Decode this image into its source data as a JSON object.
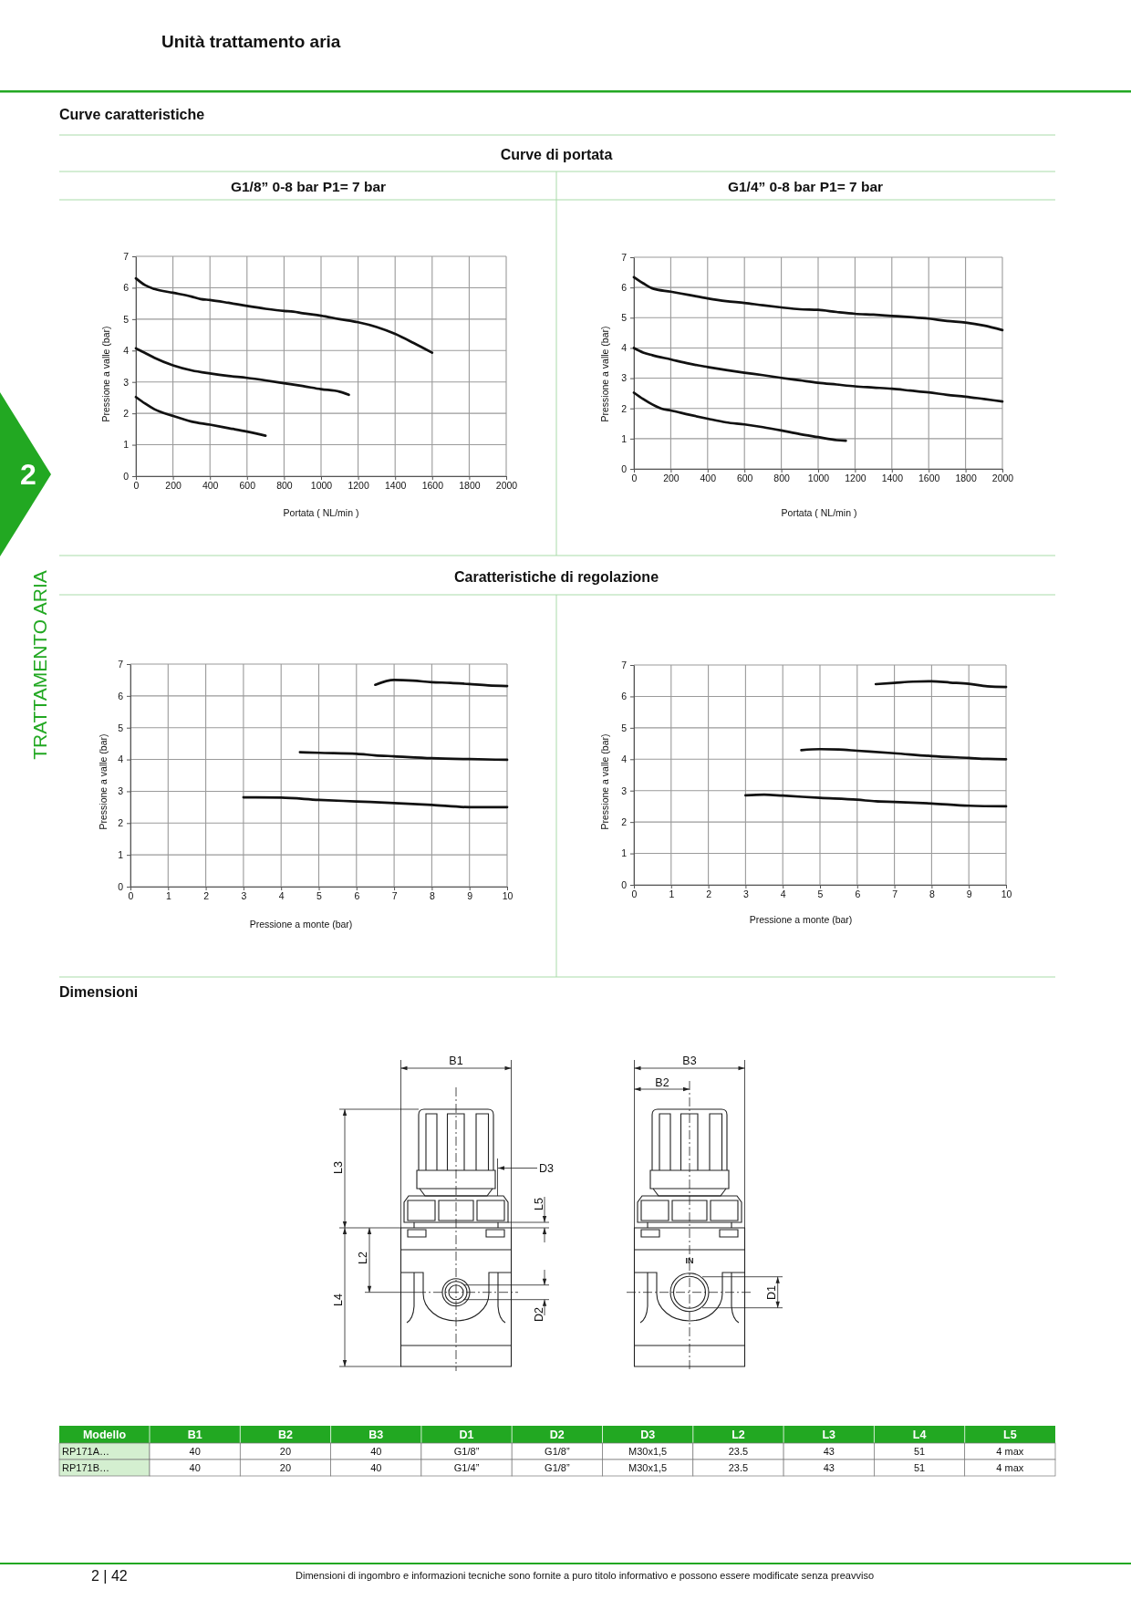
{
  "chart_data": [
    {
      "type": "line",
      "title": "G1/8” 0-8 bar P1= 7 bar",
      "xlabel": "Portata ( NL/min )",
      "ylabel": "Pressione a valle (bar)",
      "xlim": [
        0,
        2000
      ],
      "xticks": [
        0,
        200,
        400,
        600,
        800,
        1000,
        1200,
        1400,
        1600,
        1800,
        2000
      ],
      "ylim": [
        0,
        7
      ],
      "yticks": [
        0,
        1,
        2,
        3,
        4,
        5,
        6,
        7
      ],
      "grid": true,
      "series": [
        {
          "color": "#111111",
          "x": [
            0,
            50,
            100,
            200,
            300,
            350,
            400,
            500,
            600,
            700,
            800,
            850,
            900,
            1000,
            1100,
            1200,
            1300,
            1400,
            1500,
            1600
          ],
          "values": [
            6.3,
            6.08,
            5.96,
            5.84,
            5.72,
            5.64,
            5.61,
            5.52,
            5.42,
            5.33,
            5.26,
            5.24,
            5.19,
            5.11,
            5.0,
            4.9,
            4.75,
            4.53,
            4.24,
            3.93
          ]
        },
        {
          "color": "#111111",
          "x": [
            0,
            50,
            100,
            200,
            300,
            400,
            500,
            600,
            700,
            800,
            900,
            1000,
            1100,
            1150
          ],
          "values": [
            4.07,
            3.92,
            3.77,
            3.53,
            3.37,
            3.27,
            3.19,
            3.13,
            3.05,
            2.96,
            2.87,
            2.77,
            2.69,
            2.59
          ]
        },
        {
          "color": "#111111",
          "x": [
            0,
            50,
            100,
            200,
            300,
            400,
            500,
            600,
            700
          ],
          "values": [
            2.52,
            2.31,
            2.13,
            1.92,
            1.74,
            1.64,
            1.53,
            1.42,
            1.29
          ]
        }
      ],
      "annotations": [
        "Unità trattamento aria",
        "Curve caratteristiche",
        "Curve di portata",
        "2",
        "TRATTAMENTO ARIA"
      ]
    },
    {
      "type": "line",
      "title": "G1/4” 0-8 bar P1= 7 bar",
      "xlabel": "Portata ( NL/min )",
      "ylabel": "Pressione a valle (bar)",
      "xlim": [
        0,
        2000
      ],
      "xticks": [
        0,
        200,
        400,
        600,
        800,
        1000,
        1200,
        1400,
        1600,
        1800,
        2000
      ],
      "ylim": [
        0,
        7
      ],
      "yticks": [
        0,
        1,
        2,
        3,
        4,
        5,
        6,
        7
      ],
      "grid": true,
      "series": [
        {
          "color": "#111111",
          "x": [
            0,
            50,
            100,
            200,
            300,
            400,
            500,
            600,
            700,
            800,
            900,
            1000,
            1100,
            1200,
            1300,
            1400,
            1500,
            1600,
            1700,
            1800,
            1900,
            2000
          ],
          "values": [
            6.34,
            6.14,
            5.97,
            5.86,
            5.75,
            5.64,
            5.55,
            5.49,
            5.41,
            5.34,
            5.28,
            5.26,
            5.19,
            5.13,
            5.1,
            5.06,
            5.02,
            4.97,
            4.89,
            4.84,
            4.74,
            4.59
          ]
        },
        {
          "color": "#111111",
          "x": [
            0,
            50,
            100,
            200,
            300,
            400,
            500,
            600,
            700,
            800,
            900,
            1000,
            1100,
            1200,
            1300,
            1400,
            1500,
            1600,
            1700,
            1800,
            1900,
            2000
          ],
          "values": [
            4.0,
            3.85,
            3.76,
            3.62,
            3.48,
            3.37,
            3.27,
            3.18,
            3.1,
            3.01,
            2.93,
            2.85,
            2.79,
            2.73,
            2.69,
            2.65,
            2.59,
            2.53,
            2.45,
            2.39,
            2.31,
            2.23
          ]
        },
        {
          "color": "#111111",
          "x": [
            0,
            50,
            100,
            150,
            200,
            300,
            400,
            500,
            600,
            700,
            800,
            900,
            1000,
            1100,
            1150
          ],
          "values": [
            2.52,
            2.31,
            2.13,
            1.99,
            1.93,
            1.79,
            1.66,
            1.54,
            1.47,
            1.38,
            1.27,
            1.15,
            1.05,
            0.95,
            0.93
          ]
        }
      ]
    },
    {
      "type": "line",
      "xlabel": "Pressione a monte (bar)",
      "ylabel": "Pressione a valle (bar)",
      "xlim": [
        0,
        10
      ],
      "xticks": [
        0,
        1,
        2,
        3,
        4,
        5,
        6,
        7,
        8,
        9,
        10
      ],
      "ylim": [
        0,
        7
      ],
      "yticks": [
        0,
        1,
        2,
        3,
        4,
        5,
        6,
        7
      ],
      "grid": true,
      "series": [
        {
          "color": "#111111",
          "x": [
            6.5,
            7,
            7.5,
            8,
            8.5,
            9,
            9.5,
            10
          ],
          "values": [
            6.35,
            6.5,
            6.48,
            6.43,
            6.41,
            6.37,
            6.33,
            6.31
          ]
        },
        {
          "color": "#111111",
          "x": [
            4.5,
            5,
            6,
            6.5,
            7,
            8,
            9,
            10
          ],
          "values": [
            4.23,
            4.21,
            4.18,
            4.13,
            4.1,
            4.04,
            4.01,
            3.99
          ]
        },
        {
          "color": "#111111",
          "x": [
            3,
            4,
            5,
            6,
            7,
            8,
            9,
            10
          ],
          "values": [
            2.81,
            2.8,
            2.73,
            2.68,
            2.63,
            2.57,
            2.5,
            2.5
          ]
        }
      ],
      "annotations": [
        "Caratteristiche di regolazione"
      ]
    },
    {
      "type": "line",
      "xlabel": "Pressione a monte (bar)",
      "ylabel": "Pressione a valle (bar)",
      "xlim": [
        0,
        10
      ],
      "xticks": [
        0,
        1,
        2,
        3,
        4,
        5,
        6,
        7,
        8,
        9,
        10
      ],
      "ylim": [
        0,
        7
      ],
      "yticks": [
        0,
        1,
        2,
        3,
        4,
        5,
        6,
        7
      ],
      "grid": true,
      "series": [
        {
          "color": "#111111",
          "x": [
            6.5,
            7,
            7.5,
            8,
            8.5,
            9,
            9.5,
            10
          ],
          "values": [
            6.39,
            6.43,
            6.47,
            6.48,
            6.44,
            6.4,
            6.32,
            6.3
          ]
        },
        {
          "color": "#111111",
          "x": [
            4.5,
            5,
            5.5,
            6,
            7,
            8,
            9,
            9.5,
            10
          ],
          "values": [
            4.29,
            4.32,
            4.31,
            4.27,
            4.19,
            4.1,
            4.04,
            4.01,
            4.0
          ]
        },
        {
          "color": "#111111",
          "x": [
            3,
            3.5,
            4,
            5,
            6,
            6.5,
            7,
            8,
            9,
            10
          ],
          "values": [
            2.85,
            2.87,
            2.84,
            2.77,
            2.71,
            2.66,
            2.64,
            2.59,
            2.52,
            2.5
          ]
        }
      ]
    },
    {
      "type": "other",
      "title": "Dimensioni",
      "annotations": [
        "B1",
        "B3",
        "B2",
        "L3",
        "D3",
        "L5",
        "L2",
        "L4",
        "D2",
        "D1",
        "IN",
        "2 | 42",
        "Dimensioni di ingombro e informazioni tecniche sono fornite a puro titolo informativo e possono essere modificate senza preavviso"
      ],
      "categories": [
        "Modello",
        "B1",
        "B2",
        "B3",
        "D1",
        "D2",
        "D3",
        "L2",
        "L3",
        "L4",
        "L5"
      ],
      "y_categories": [
        "RP171A…",
        "RP171B…"
      ],
      "cell_labels": [
        [
          "40",
          "20",
          "40",
          "G1/8”",
          "G1/8”",
          "M30x1,5",
          "23.5",
          "43",
          "51",
          "4 max"
        ],
        [
          "40",
          "20",
          "40",
          "G1/4”",
          "G1/8”",
          "M30x1,5",
          "23.5",
          "43",
          "51",
          "4 max"
        ]
      ]
    }
  ]
}
